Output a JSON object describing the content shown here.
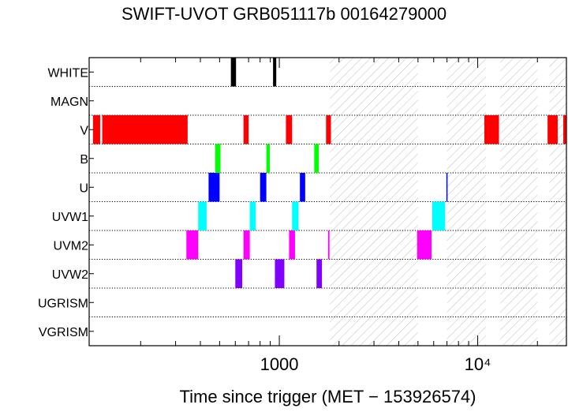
{
  "chart_data": {
    "type": "timeline",
    "title": "SWIFT-UVOT GRB051117b 00164279000",
    "xlabel": "Time since trigger (MET − 153926574)",
    "xscale": "log",
    "xlim": [
      110,
      28000
    ],
    "x_ticks": [
      {
        "value": 1000,
        "label": "1000"
      },
      {
        "value": 10000,
        "label": "10⁴"
      }
    ],
    "filters": [
      "WHITE",
      "MAGN",
      "V",
      "B",
      "U",
      "UVW1",
      "UVM2",
      "UVW2",
      "UGRISM",
      "VGRISM"
    ],
    "colors": {
      "WHITE": "#000000",
      "MAGN": "#808080",
      "V": "#ff0000",
      "B": "#00ff00",
      "U": "#0000ff",
      "UVW1": "#00ffff",
      "UVM2": "#ff00ff",
      "UVW2": "#8000ff",
      "UGRISM": "#000000",
      "VGRISM": "#000000"
    },
    "gaps": [
      [
        1800,
        5000
      ],
      [
        7000,
        11000
      ],
      [
        13000,
        20000
      ],
      [
        23000,
        28000
      ]
    ],
    "exposures": {
      "WHITE": [
        [
          570,
          605
        ],
        [
          930,
          965
        ]
      ],
      "MAGN": [],
      "V": [
        [
          115,
          125
        ],
        [
          128,
          345
        ],
        [
          660,
          700
        ],
        [
          1080,
          1160
        ],
        [
          1720,
          1820
        ],
        [
          10800,
          12800
        ],
        [
          22500,
          25300
        ],
        [
          27000,
          28000
        ]
      ],
      "B": [
        [
          475,
          505
        ],
        [
          860,
          895
        ],
        [
          1500,
          1580
        ]
      ],
      "U": [
        [
          440,
          500
        ],
        [
          800,
          860
        ],
        [
          1270,
          1350
        ],
        [
          6950,
          7000
        ]
      ],
      "UVW1": [
        [
          390,
          430
        ],
        [
          710,
          760
        ],
        [
          1160,
          1250
        ],
        [
          5900,
          6850
        ]
      ],
      "UVM2": [
        [
          340,
          390
        ],
        [
          660,
          710
        ],
        [
          1120,
          1200
        ],
        [
          1760,
          1790
        ],
        [
          4950,
          5850
        ]
      ],
      "UVW2": [
        [
          600,
          650
        ],
        [
          950,
          1060
        ],
        [
          1540,
          1640
        ]
      ],
      "UGRISM": [],
      "VGRISM": []
    }
  }
}
